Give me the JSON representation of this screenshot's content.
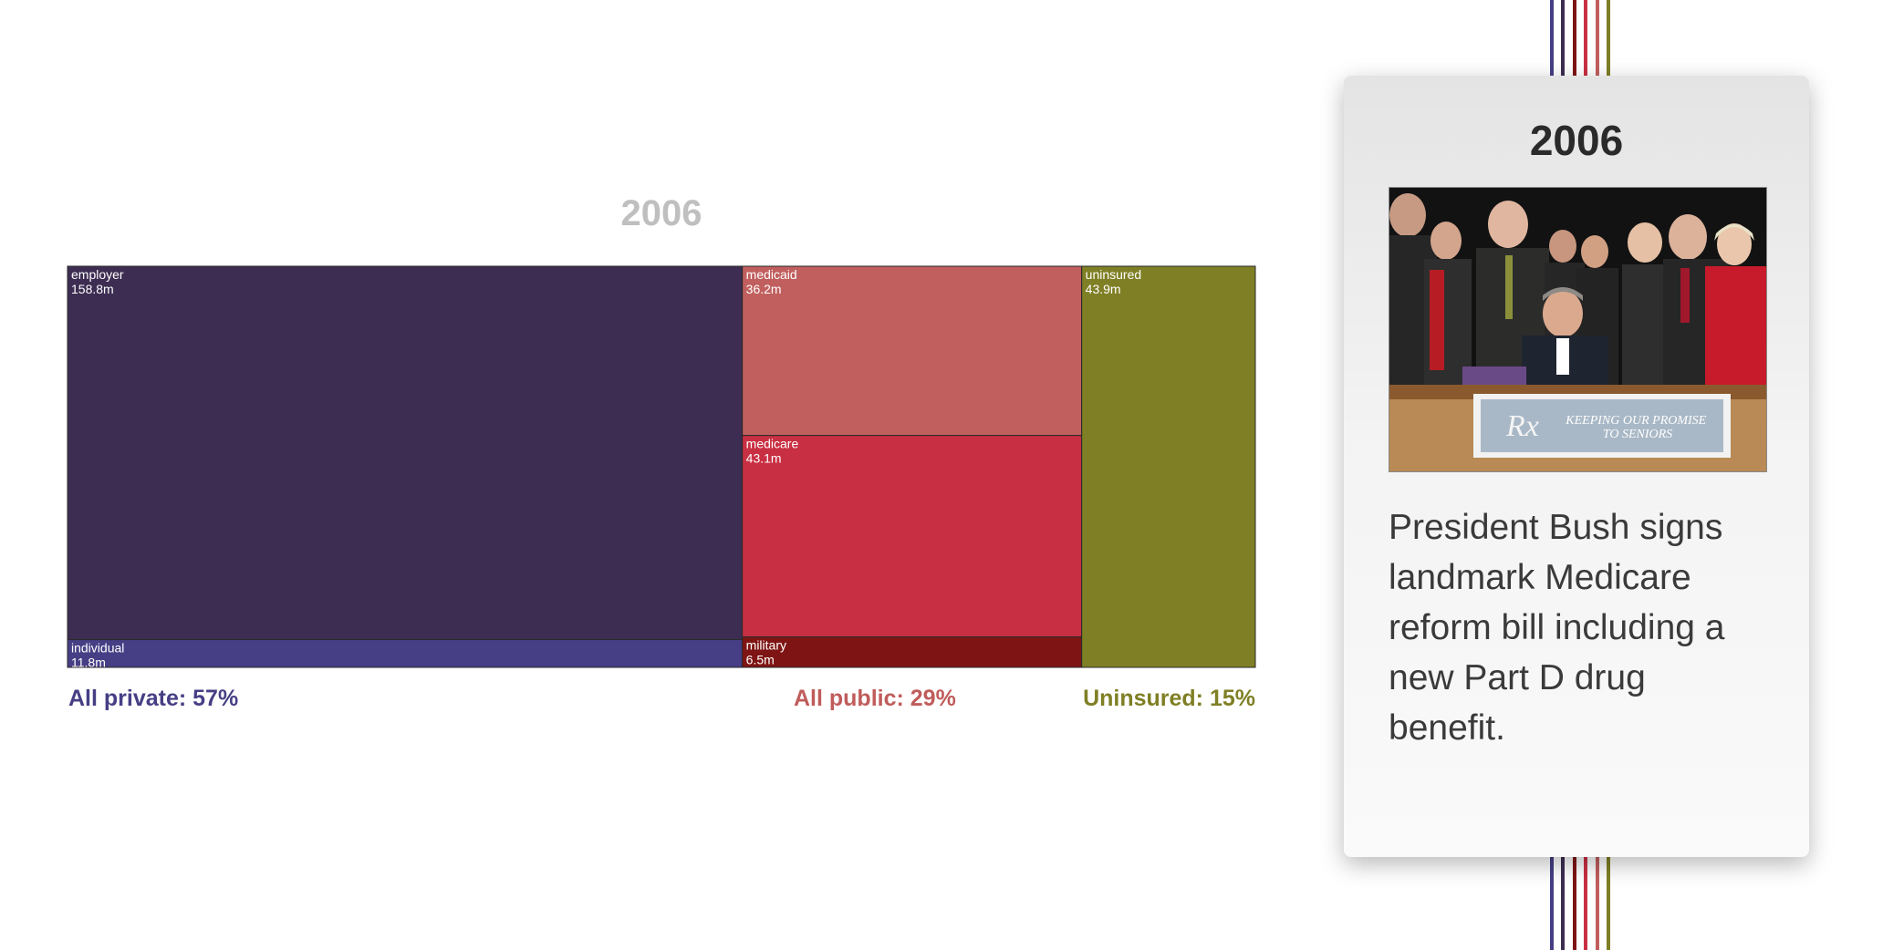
{
  "chart_data": {
    "type": "treemap",
    "title": "2006",
    "units": "m",
    "groups": [
      {
        "name": "All private: 57%",
        "color": "#463f85",
        "children": [
          {
            "name": "employer",
            "value": 158.8,
            "display": "158.8m",
            "color": "#3d2d52"
          },
          {
            "name": "individual",
            "value": 11.8,
            "display": "11.8m",
            "color": "#473f85"
          }
        ]
      },
      {
        "name": "All public: 29%",
        "color": "#c05c5b",
        "children": [
          {
            "name": "medicaid",
            "value": 36.2,
            "display": "36.2m",
            "color": "#c05f5e"
          },
          {
            "name": "medicare",
            "value": 43.1,
            "display": "43.1m",
            "color": "#c92f42"
          },
          {
            "name": "military",
            "value": 6.5,
            "display": "6.5m",
            "color": "#7e1514"
          }
        ]
      },
      {
        "name": "Uninsured: 15%",
        "color": "#7f7f25",
        "children": [
          {
            "name": "uninsured",
            "value": 43.9,
            "display": "43.9m",
            "color": "#7f7f25"
          }
        ]
      }
    ]
  },
  "labels": {
    "private": "All private: 57%",
    "public": "All public: 29%",
    "uninsured": "Uninsured: 15%"
  },
  "timeline": {
    "line_colors": [
      "#463f85",
      "#3d2d52",
      "#7e1514",
      "#c92f42",
      "#c05f5e",
      "#7f7f25"
    ]
  },
  "event_card": {
    "year": "2006",
    "photo_sign_text": "KEEPING OUR PROMISE TO SENIORS",
    "description": "President Bush signs landmark Medicare reform bill including a new Part D drug benefit."
  }
}
